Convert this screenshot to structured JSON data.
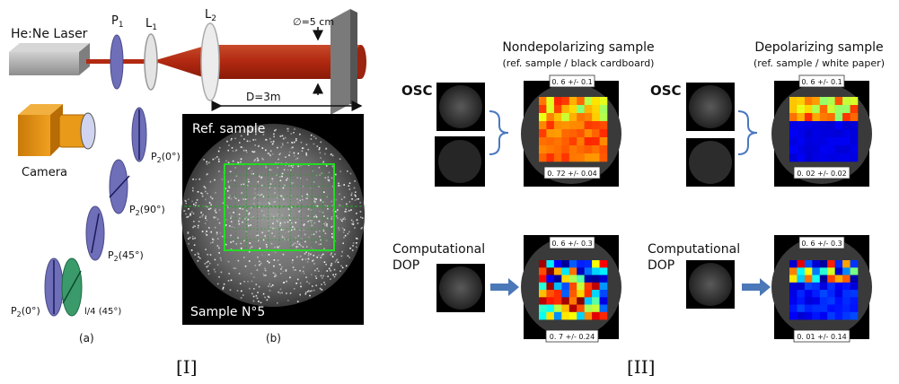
{
  "panel_I": {
    "laser": "He:Ne Laser",
    "p1": "P",
    "p1_sub": "1",
    "l1": "L",
    "l1_sub": "1",
    "l2": "L",
    "l2_sub": "2",
    "diameter": "∅=5 cm",
    "distance": "D=3m",
    "camera": "Camera",
    "p2": "P",
    "p2_sub": "2",
    "angle_0": "(0°)",
    "angle_90": "(90°)",
    "angle_45": "(45°)",
    "qwp": "l/4 (45°)",
    "ref_sample": "Ref. sample",
    "sample_n5": "Sample N°5",
    "sub_a": "(a)",
    "sub_b": "(b)",
    "roman": "[I]"
  },
  "panel_II": {
    "nondepol_title": "Nondepolarizing sample",
    "nondepol_sub": "(ref. sample / black cardboard)",
    "depol_title": "Depolarizing sample",
    "depol_sub": "(ref. sample / white paper)",
    "osc": "OSC",
    "comp1": "Computational",
    "comp2": "DOP",
    "nd_osc_top": "0. 6 +/- 0.1",
    "nd_osc_bot": "0. 72 +/- 0.04",
    "nd_dop_top": "0. 6 +/- 0.3",
    "nd_dop_bot": "0. 7 +/- 0.24",
    "d_osc_top": "0. 6 +/- 0.1",
    "d_osc_bot": "0. 02 +/- 0.02",
    "d_dop_top": "0. 6 +/- 0.3",
    "d_dop_bot": "0. 01 +/- 0.14",
    "roman": "[II]"
  },
  "colors": {
    "laser_body": "#a9a9a9",
    "beam": "#b22a12",
    "polarizer": "#6e6fb8",
    "lens": "#d8d8d8",
    "camera": "#e08a0c",
    "qwp": "#3a9a6a",
    "roi": "#22dd22"
  }
}
